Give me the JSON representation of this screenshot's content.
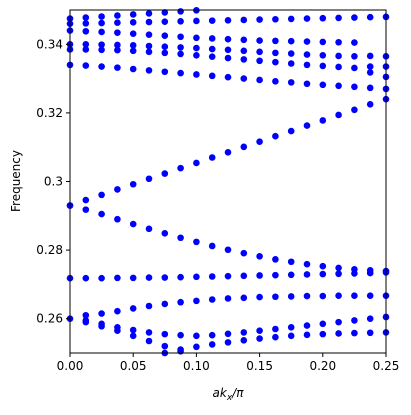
{
  "chart_data": {
    "type": "scatter",
    "x_label": {
      "main": "ak",
      "sub": "x",
      "rest": "/π"
    },
    "y_label": "Frequency",
    "xlim": [
      0,
      0.25
    ],
    "ylim": [
      0.25,
      0.35
    ],
    "xticks": [
      {
        "value": 0,
        "label": "0.00"
      },
      {
        "value": 0.05,
        "label": "0.05"
      },
      {
        "value": 0.1,
        "label": "0.10"
      },
      {
        "value": 0.15,
        "label": "0.15"
      },
      {
        "value": 0.2,
        "label": "0.20"
      },
      {
        "value": 0.25,
        "label": "0.25"
      }
    ],
    "yticks": [
      0.26,
      0.28,
      0.3,
      0.32,
      0.34
    ],
    "x": [
      0,
      0.0125,
      0.025,
      0.0375,
      0.05,
      0.0625,
      0.075,
      0.0875,
      0.1,
      0.1125,
      0.125,
      0.1375,
      0.15,
      0.1625,
      0.175,
      0.1875,
      0.2,
      0.2125,
      0.225,
      0.2375,
      0.25
    ],
    "series": [
      {
        "color": "#0000ff",
        "values": [
          0.293,
          0.2946,
          0.2961,
          0.2977,
          0.2992,
          0.3008,
          0.3023,
          0.3039,
          0.3054,
          0.307,
          0.3085,
          0.3101,
          0.3116,
          0.3132,
          0.3147,
          0.3163,
          0.3178,
          0.3194,
          0.3209,
          0.3225,
          0.324
        ]
      },
      {
        "color": "#0000ff",
        "values": [
          0.293,
          0.2918,
          0.2905,
          0.289,
          0.2876,
          0.2862,
          0.2849,
          0.2836,
          0.2824,
          0.2812,
          0.2801,
          0.2791,
          0.2782,
          0.2773,
          0.2766,
          0.2759,
          0.2753,
          0.2748,
          0.2744,
          0.2741,
          0.2739
        ]
      },
      {
        "color": "#0000ff",
        "values": [
          0.2718,
          0.2718,
          0.2718,
          0.2719,
          0.2719,
          0.272,
          0.272,
          0.2721,
          0.2722,
          0.2723,
          0.2724,
          0.2725,
          0.2726,
          0.2727,
          0.2728,
          0.2729,
          0.273,
          0.2731,
          0.2732,
          0.2733,
          0.2735
        ]
      },
      {
        "color": "#0000ff",
        "values": [
          null,
          0.261,
          0.2615,
          0.2622,
          0.263,
          0.2637,
          0.2643,
          0.2648,
          0.2652,
          0.2656,
          0.2659,
          0.2661,
          0.2663,
          0.2664,
          0.2665,
          0.2666,
          0.2666,
          0.2667,
          0.2667,
          0.2667,
          0.2667
        ]
      },
      {
        "color": "#0000ff",
        "values": [
          0.26,
          0.259,
          0.2578,
          0.2565,
          0.255,
          0.2535,
          0.252,
          0.2505,
          null,
          null,
          null,
          null,
          null,
          null,
          null,
          null,
          null,
          null,
          null,
          null,
          null
        ]
      },
      {
        "color": "#0000ff",
        "values": [
          null,
          null,
          null,
          null,
          null,
          null,
          0.25,
          0.251,
          0.2518,
          0.2525,
          0.2531,
          0.2537,
          0.2542,
          0.2546,
          0.255,
          0.2553,
          0.2555,
          0.2557,
          0.2558,
          0.2559,
          0.256
        ]
      },
      {
        "color": "#0000ff",
        "values": [
          null,
          0.2595,
          0.2585,
          0.2575,
          0.2567,
          0.256,
          0.2555,
          0.2552,
          0.255,
          0.2552,
          0.2556,
          0.256,
          0.2565,
          0.257,
          0.2575,
          0.258,
          0.2585,
          0.259,
          0.2595,
          0.26,
          0.2605
        ]
      },
      {
        "color": "#0000ff",
        "values": [
          0.334,
          0.3338,
          0.3335,
          0.3332,
          0.3328,
          0.3324,
          0.332,
          0.3316,
          0.3312,
          0.3308,
          0.3304,
          0.33,
          0.3296,
          0.3292,
          0.3289,
          0.3285,
          0.3282,
          0.3279,
          0.3276,
          0.3273,
          0.327
        ]
      },
      {
        "color": "#0000ff",
        "values": [
          0.3385,
          0.3385,
          0.3384,
          0.3383,
          0.3381,
          0.3378,
          0.3375,
          0.3372,
          0.3368,
          0.3364,
          0.336,
          0.3356,
          0.3352,
          0.3348,
          0.3344,
          0.334,
          0.3337,
          0.3334,
          0.3331,
          0.3318,
          0.3305
        ]
      },
      {
        "color": "#0000ff",
        "values": [
          0.34,
          0.34,
          0.3399,
          0.3398,
          0.3397,
          0.3395,
          0.3393,
          0.3391,
          0.3389,
          0.3386,
          0.3384,
          0.3381,
          0.3378,
          0.3375,
          0.3373,
          0.337,
          0.3368,
          0.3366,
          0.3365,
          0.3335,
          0.3335
        ]
      },
      {
        "color": "#0000ff",
        "values": [
          0.344,
          0.3438,
          0.3436,
          0.3434,
          0.3431,
          0.3428,
          0.3425,
          0.3422,
          0.3419,
          0.3417,
          0.3415,
          0.3413,
          0.3411,
          0.341,
          0.3409,
          0.3408,
          0.3407,
          0.3406,
          0.3405,
          0.3366,
          0.3365
        ]
      },
      {
        "color": "#0000ff",
        "values": [
          0.346,
          0.3461,
          0.3462,
          0.3463,
          0.3464,
          0.3465,
          0.3466,
          0.3467,
          0.3468,
          0.3469,
          0.347,
          0.3471,
          0.3472,
          0.3473,
          0.3474,
          0.3475,
          0.3476,
          0.3477,
          0.3478,
          0.3479,
          0.348
        ]
      },
      {
        "color": "#0000ff",
        "values": [
          0.3475,
          0.3478,
          0.3481,
          0.3484,
          0.3487,
          0.349,
          0.3493,
          0.3496,
          0.3499,
          null,
          null,
          null,
          null,
          null,
          null,
          null,
          null,
          null,
          null,
          null,
          null
        ]
      }
    ]
  }
}
